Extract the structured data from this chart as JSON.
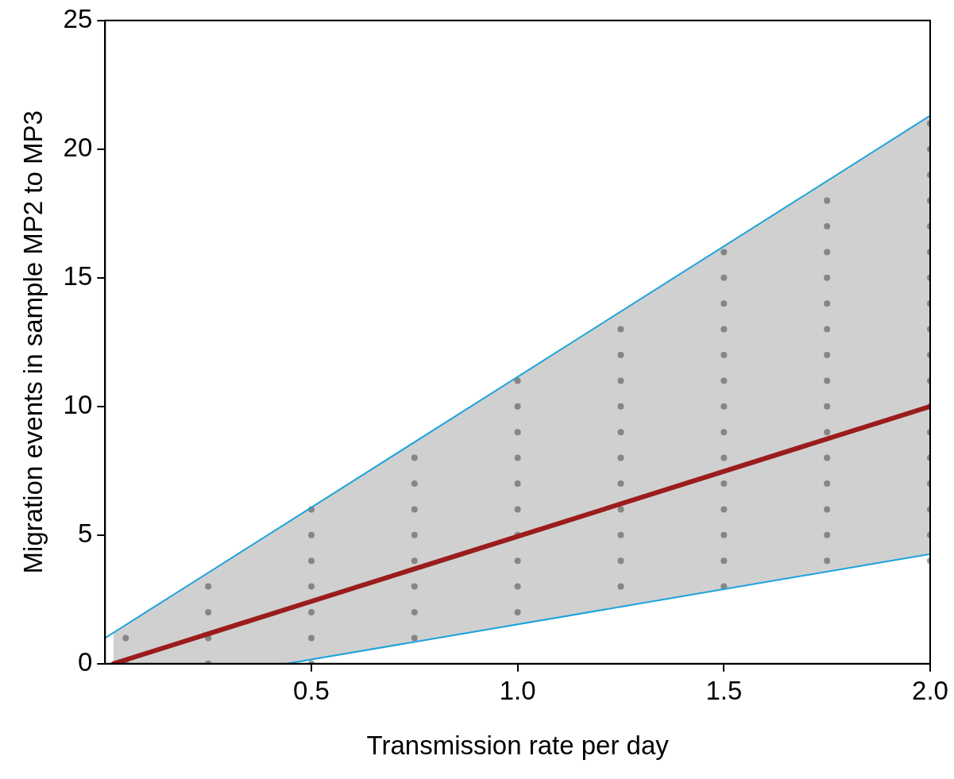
{
  "chart_data": {
    "type": "scatter",
    "xlabel": "Transmission rate per day",
    "ylabel": "Migration events in sample MP2 to MP3",
    "xlim": [
      0,
      2
    ],
    "ylim": [
      0,
      25
    ],
    "xticks": [
      0.5,
      {
        "value": 1,
        "label": "1.0"
      },
      1.5,
      {
        "value": 2,
        "label": "2.0"
      }
    ],
    "yticks": [
      0,
      5,
      10,
      15,
      20,
      25
    ],
    "marker": "none",
    "series": [
      {
        "marker": "circle",
        "color": "#555555",
        "x": [
          0.05,
          0.05,
          0.25,
          0.25,
          0.25,
          0.25,
          0.5,
          0.5,
          0.5,
          0.5,
          0.5,
          0.5,
          0.5,
          0.75,
          0.75,
          0.75,
          0.75,
          0.75,
          0.75,
          0.75,
          0.75,
          1,
          1,
          1,
          1,
          1,
          1,
          1,
          1,
          1,
          1,
          1.25,
          1.25,
          1.25,
          1.25,
          1.25,
          1.25,
          1.25,
          1.25,
          1.25,
          1.25,
          1.25,
          1.5,
          1.5,
          1.5,
          1.5,
          1.5,
          1.5,
          1.5,
          1.5,
          1.5,
          1.5,
          1.5,
          1.5,
          1.5,
          1.5,
          1.75,
          1.75,
          1.75,
          1.75,
          1.75,
          1.75,
          1.75,
          1.75,
          1.75,
          1.75,
          1.75,
          1.75,
          1.75,
          1.75,
          1.75,
          2,
          2,
          2,
          2,
          2,
          2,
          2,
          2,
          2,
          2,
          2,
          2,
          2,
          2,
          2,
          2,
          2,
          2
        ],
        "values": [
          0,
          1,
          0,
          1,
          2,
          3,
          0,
          1,
          2,
          3,
          4,
          5,
          6,
          1,
          2,
          3,
          4,
          5,
          6,
          7,
          8,
          2,
          3,
          4,
          5,
          6,
          7,
          8,
          9,
          10,
          11,
          3,
          4,
          5,
          6,
          7,
          8,
          9,
          10,
          11,
          12,
          13,
          3,
          4,
          5,
          6,
          7,
          8,
          9,
          10,
          11,
          12,
          13,
          14,
          15,
          16,
          4,
          5,
          6,
          7,
          8,
          9,
          10,
          11,
          12,
          13,
          14,
          15,
          16,
          17,
          18,
          4,
          5,
          6,
          7,
          8,
          9,
          10,
          11,
          12,
          13,
          14,
          15,
          16,
          17,
          18,
          19,
          20,
          21
        ]
      },
      {
        "type": "line",
        "color": "#1ba3dc",
        "x": [
          0,
          2
        ],
        "values": [
          1,
          21.3
        ]
      },
      {
        "type": "line",
        "color": "#1ba3dc",
        "x": [
          0.44,
          2
        ],
        "values": [
          0,
          4.26
        ]
      },
      {
        "type": "line",
        "color": "#9b1c1c",
        "x": [
          0.02,
          0.44,
          2
        ],
        "values": [
          0,
          2.12,
          10
        ],
        "lower": [
          0,
          0,
          4.26
        ],
        "upper": [
          1.2,
          5.47,
          21.3
        ]
      }
    ]
  }
}
